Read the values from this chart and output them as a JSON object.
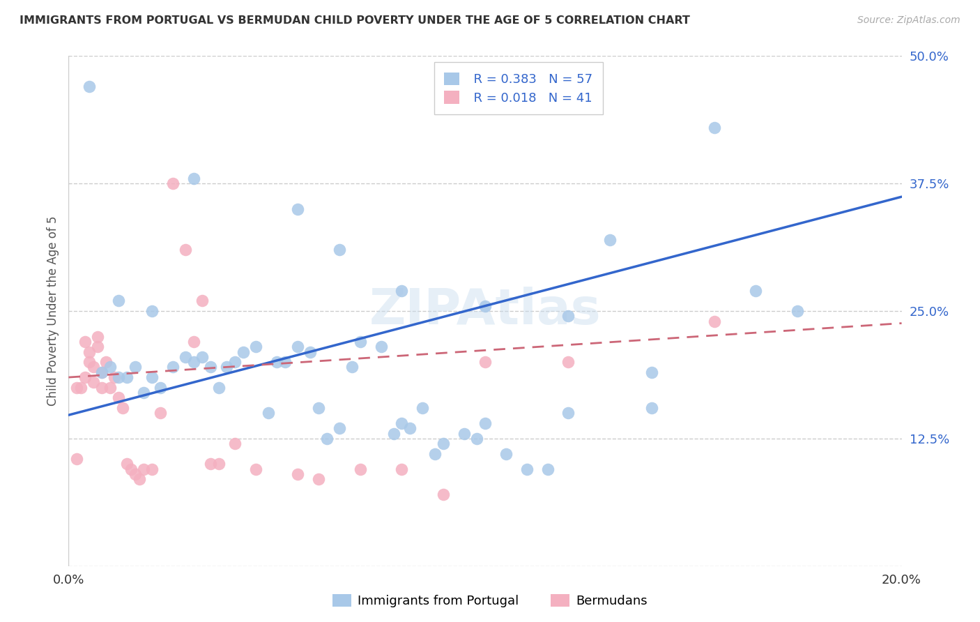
{
  "title": "IMMIGRANTS FROM PORTUGAL VS BERMUDAN CHILD POVERTY UNDER THE AGE OF 5 CORRELATION CHART",
  "source": "Source: ZipAtlas.com",
  "ylabel": "Child Poverty Under the Age of 5",
  "xlim": [
    0.0,
    0.2
  ],
  "ylim": [
    0.0,
    0.5
  ],
  "color_blue": "#a8c8e8",
  "color_pink": "#f4b0c0",
  "line_blue": "#3366cc",
  "line_pink": "#cc6677",
  "background": "#ffffff",
  "grid_color": "#cccccc",
  "blue_line_x0": 0.0,
  "blue_line_y0": 0.148,
  "blue_line_x1": 0.2,
  "blue_line_y1": 0.362,
  "pink_line_x0": 0.0,
  "pink_line_y0": 0.185,
  "pink_line_x1": 0.2,
  "pink_line_y1": 0.238,
  "blue_scatter_x": [
    0.005,
    0.01,
    0.012,
    0.014,
    0.016,
    0.018,
    0.02,
    0.022,
    0.025,
    0.028,
    0.03,
    0.032,
    0.034,
    0.036,
    0.038,
    0.04,
    0.042,
    0.045,
    0.048,
    0.05,
    0.052,
    0.055,
    0.058,
    0.06,
    0.062,
    0.065,
    0.068,
    0.07,
    0.075,
    0.078,
    0.08,
    0.082,
    0.085,
    0.088,
    0.09,
    0.095,
    0.098,
    0.1,
    0.105,
    0.11,
    0.115,
    0.12,
    0.13,
    0.14,
    0.155,
    0.165,
    0.175,
    0.055,
    0.065,
    0.08,
    0.1,
    0.12,
    0.14,
    0.02,
    0.03,
    0.012,
    0.008
  ],
  "blue_scatter_y": [
    0.47,
    0.195,
    0.185,
    0.185,
    0.195,
    0.17,
    0.185,
    0.175,
    0.195,
    0.205,
    0.2,
    0.205,
    0.195,
    0.175,
    0.195,
    0.2,
    0.21,
    0.215,
    0.15,
    0.2,
    0.2,
    0.215,
    0.21,
    0.155,
    0.125,
    0.135,
    0.195,
    0.22,
    0.215,
    0.13,
    0.14,
    0.135,
    0.155,
    0.11,
    0.12,
    0.13,
    0.125,
    0.14,
    0.11,
    0.095,
    0.095,
    0.15,
    0.32,
    0.19,
    0.43,
    0.27,
    0.25,
    0.35,
    0.31,
    0.27,
    0.255,
    0.245,
    0.155,
    0.25,
    0.38,
    0.26,
    0.19
  ],
  "pink_scatter_x": [
    0.002,
    0.003,
    0.004,
    0.004,
    0.005,
    0.005,
    0.006,
    0.006,
    0.007,
    0.007,
    0.008,
    0.008,
    0.009,
    0.01,
    0.011,
    0.012,
    0.013,
    0.014,
    0.015,
    0.016,
    0.017,
    0.018,
    0.02,
    0.022,
    0.025,
    0.028,
    0.03,
    0.032,
    0.034,
    0.036,
    0.04,
    0.045,
    0.055,
    0.06,
    0.07,
    0.08,
    0.09,
    0.1,
    0.12,
    0.155,
    0.002
  ],
  "pink_scatter_y": [
    0.175,
    0.175,
    0.185,
    0.22,
    0.21,
    0.2,
    0.195,
    0.18,
    0.215,
    0.225,
    0.19,
    0.175,
    0.2,
    0.175,
    0.185,
    0.165,
    0.155,
    0.1,
    0.095,
    0.09,
    0.085,
    0.095,
    0.095,
    0.15,
    0.375,
    0.31,
    0.22,
    0.26,
    0.1,
    0.1,
    0.12,
    0.095,
    0.09,
    0.085,
    0.095,
    0.095,
    0.07,
    0.2,
    0.2,
    0.24,
    0.105
  ]
}
